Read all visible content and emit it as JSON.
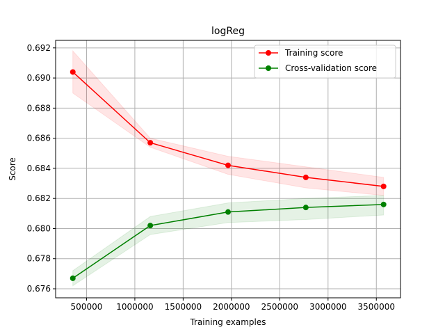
{
  "chart_data": {
    "type": "line",
    "title": "logReg",
    "xlabel": "Training examples",
    "ylabel": "Score",
    "xlim": [
      180000,
      3750000
    ],
    "ylim": [
      0.6754,
      0.6925
    ],
    "grid": true,
    "legend_position": "top-right",
    "x": [
      358000,
      1160000,
      1965000,
      2770000,
      3575000
    ],
    "x_ticks": [
      500000,
      1000000,
      1500000,
      2000000,
      2500000,
      3000000,
      3500000
    ],
    "x_tick_labels": [
      "500000",
      "1000000",
      "1500000",
      "2000000",
      "2500000",
      "3000000",
      "3500000"
    ],
    "y_ticks": [
      0.676,
      0.678,
      0.68,
      0.682,
      0.684,
      0.686,
      0.688,
      0.69,
      0.692
    ],
    "y_tick_labels": [
      "0.676",
      "0.678",
      "0.680",
      "0.682",
      "0.684",
      "0.686",
      "0.688",
      "0.690",
      "0.692"
    ],
    "series": [
      {
        "name": "Training score",
        "color": "#ff0000",
        "band_color": "#ff0000",
        "values": [
          0.6904,
          0.6857,
          0.6842,
          0.6834,
          0.6828
        ],
        "band_lower": [
          0.689,
          0.6854,
          0.6836,
          0.6827,
          0.6822
        ],
        "band_upper": [
          0.6918,
          0.686,
          0.6848,
          0.6841,
          0.6834
        ]
      },
      {
        "name": "Cross-validation score",
        "color": "#008000",
        "band_color": "#008000",
        "values": [
          0.6767,
          0.6802,
          0.6811,
          0.6814,
          0.6816
        ],
        "band_lower": [
          0.6762,
          0.6796,
          0.6804,
          0.6806,
          0.6809
        ],
        "band_upper": [
          0.6772,
          0.6808,
          0.6817,
          0.682,
          0.6822
        ]
      }
    ]
  }
}
